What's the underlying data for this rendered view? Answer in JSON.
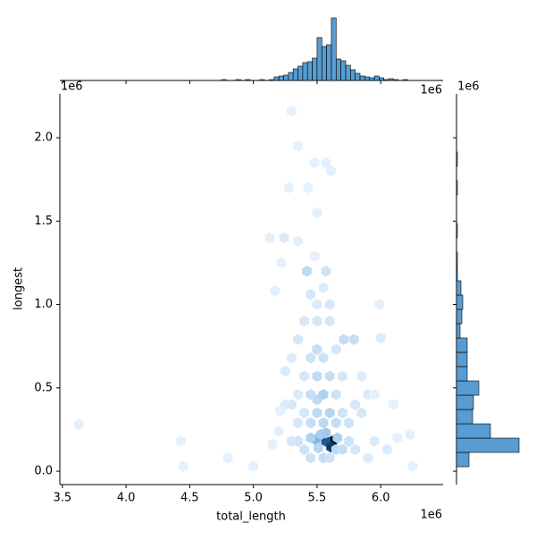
{
  "chart_data": {
    "type": "hexbin-joint",
    "x_label": "total_length",
    "y_label": "longest",
    "x_offset_label": "1e6",
    "y_offset_label": "1e6",
    "top_x_offset_label": "1e6",
    "right_y_offset_label": "1e6",
    "xlim": [
      3.48,
      6.49
    ],
    "ylim": [
      -0.08,
      2.263
    ],
    "xticks": [
      {
        "value": 3.5,
        "label": "3.5"
      },
      {
        "value": 4.0,
        "label": "4.0"
      },
      {
        "value": 4.5,
        "label": "4.5"
      },
      {
        "value": 5.0,
        "label": "5.0"
      },
      {
        "value": 5.5,
        "label": "5.5"
      },
      {
        "value": 6.0,
        "label": "6.0"
      }
    ],
    "yticks": [
      {
        "value": 0.0,
        "label": "0.0"
      },
      {
        "value": 0.5,
        "label": "0.5"
      },
      {
        "value": 1.0,
        "label": "1.0"
      },
      {
        "value": 1.5,
        "label": "1.5"
      },
      {
        "value": 2.0,
        "label": "2.0"
      }
    ],
    "color": "#3b8bc9",
    "hexbin": {
      "x": [
        5.62,
        5.57,
        5.61,
        5.49,
        5.57,
        5.45,
        5.53,
        5.51,
        5.66,
        5.42,
        5.57,
        5.5,
        5.79,
        5.71,
        5.5,
        5.45,
        5.55,
        5.6,
        5.65,
        5.7,
        5.4,
        5.35,
        5.3,
        5.75,
        5.8,
        5.45,
        5.55,
        5.65,
        5.5,
        5.6,
        5.7,
        5.4,
        5.35,
        5.75,
        5.45,
        5.55,
        5.65,
        5.5,
        5.6,
        5.4,
        5.7,
        5.35,
        5.3,
        5.25,
        5.8,
        5.85,
        5.9,
        5.45,
        5.55,
        5.5,
        5.6,
        5.4,
        5.65,
        5.35,
        5.5,
        5.6,
        5.45,
        5.55,
        3.63,
        4.45,
        4.43,
        4.8,
        5.0,
        5.15,
        5.21,
        5.3,
        5.35,
        5.48,
        5.57,
        5.61,
        5.28,
        5.43,
        5.5,
        5.13,
        5.24,
        5.35,
        5.17,
        5.22,
        5.48,
        6.0,
        5.99,
        6.25,
        6.23,
        6.13,
        5.95,
        6.05,
        5.9,
        5.2,
        5.25,
        5.85,
        5.3,
        5.95,
        6.1
      ],
      "y": [
        0.18,
        0.18,
        0.145,
        0.19,
        0.23,
        0.2,
        0.22,
        0.14,
        0.2,
        1.2,
        1.2,
        0.73,
        0.79,
        0.79,
        0.43,
        0.08,
        0.08,
        0.08,
        0.13,
        0.13,
        0.13,
        0.18,
        0.18,
        0.18,
        0.13,
        0.29,
        0.29,
        0.29,
        0.35,
        0.35,
        0.35,
        0.35,
        0.29,
        0.29,
        0.46,
        0.46,
        0.46,
        0.57,
        0.57,
        0.57,
        0.57,
        0.46,
        0.4,
        0.4,
        0.4,
        0.35,
        0.46,
        0.68,
        0.68,
        0.9,
        0.9,
        0.9,
        0.73,
        0.79,
        1.0,
        1.0,
        1.06,
        1.1,
        0.28,
        0.03,
        0.18,
        0.08,
        0.03,
        0.16,
        0.36,
        2.16,
        1.95,
        1.85,
        1.85,
        1.8,
        1.7,
        1.7,
        1.55,
        1.4,
        1.4,
        1.38,
        1.08,
        1.25,
        1.29,
        0.8,
        1.0,
        0.03,
        0.22,
        0.2,
        0.18,
        0.13,
        0.08,
        0.24,
        0.6,
        0.57,
        0.68,
        0.46,
        0.4
      ],
      "counts": [
        40,
        28,
        32,
        14,
        10,
        8,
        9,
        7,
        8,
        6,
        4,
        5,
        5,
        5,
        6,
        4,
        5,
        4,
        6,
        5,
        4,
        4,
        3,
        4,
        3,
        5,
        6,
        5,
        6,
        7,
        4,
        3,
        3,
        4,
        5,
        8,
        4,
        6,
        5,
        3,
        3,
        2,
        3,
        2,
        3,
        3,
        2,
        4,
        4,
        3,
        3,
        3,
        3,
        3,
        2,
        3,
        3,
        2,
        1,
        1,
        1,
        1,
        1,
        1,
        1,
        1,
        1,
        1,
        1,
        1,
        1,
        1,
        1,
        1,
        2,
        1,
        1,
        1,
        1,
        2,
        1,
        1,
        1,
        1,
        2,
        2,
        2,
        1,
        2,
        2,
        2,
        1,
        1
      ]
    },
    "top_hist": {
      "bins": [
        4.75,
        4.7875,
        4.825,
        4.8625,
        4.9,
        4.9375,
        4.975,
        5.0125,
        5.05,
        5.0875,
        5.125,
        5.1625,
        5.2,
        5.2375,
        5.275,
        5.3125,
        5.35,
        5.3875,
        5.425,
        5.4625,
        5.5,
        5.5375,
        5.575,
        5.6125,
        5.65,
        5.6875,
        5.725,
        5.7625,
        5.8,
        5.8375,
        5.875,
        5.9125,
        5.95,
        5.9875,
        6.025,
        6.0625,
        6.1,
        6.1375,
        6.175,
        6.2125,
        6.25
      ],
      "counts": [
        1,
        0,
        0,
        1,
        0,
        1,
        0,
        0,
        1,
        0,
        1,
        4,
        5,
        6,
        9,
        13,
        16,
        20,
        21,
        25,
        48,
        38,
        40,
        70,
        24,
        22,
        17,
        12,
        8,
        5,
        4,
        3,
        5,
        3,
        1,
        2,
        1,
        0,
        1,
        0
      ],
      "ylim": [
        0,
        72
      ]
    },
    "right_hist": {
      "bins": [
        0.027,
        0.1128,
        0.1986,
        0.2844,
        0.3702,
        0.456,
        0.5418,
        0.6276,
        0.7134,
        0.7992,
        0.885,
        0.9708,
        1.0566,
        1.1424,
        1.2282,
        1.314,
        1.3998,
        1.4856,
        1.5714,
        1.6572,
        1.743,
        1.8288,
        1.9146,
        2.0004,
        2.0862,
        2.172
      ],
      "counts": [
        14,
        70,
        38,
        18,
        19,
        25,
        12,
        12,
        12,
        4,
        6,
        7,
        5,
        1,
        1,
        0,
        1,
        0,
        0,
        1,
        0,
        1,
        0,
        0,
        0
      ],
      "xlim": [
        0,
        72
      ]
    }
  }
}
